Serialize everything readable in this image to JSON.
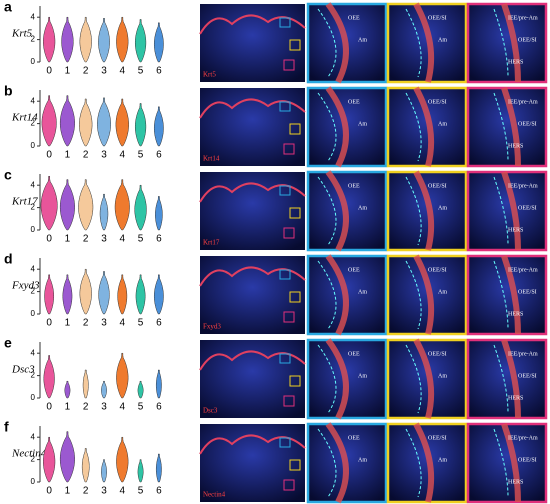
{
  "chart_data": [
    {
      "type": "violin",
      "panel": "a",
      "gene": "Krt5",
      "categories": [
        "0",
        "1",
        "2",
        "3",
        "4",
        "5",
        "6"
      ],
      "values": [
        4,
        4,
        4,
        3.9,
        4,
        3.8,
        3.5
      ],
      "ylim": [
        0,
        5
      ],
      "yticks": [
        0,
        2,
        4
      ]
    },
    {
      "type": "violin",
      "panel": "b",
      "gene": "Krt14",
      "categories": [
        "0",
        "1",
        "2",
        "3",
        "4",
        "5",
        "6"
      ],
      "values": [
        4.5,
        4.5,
        4.2,
        4.3,
        4.2,
        3.8,
        3.5
      ],
      "ylim": [
        0,
        5
      ],
      "yticks": [
        0,
        2,
        4
      ]
    },
    {
      "type": "violin",
      "panel": "c",
      "gene": "Krt17",
      "categories": [
        "0",
        "1",
        "2",
        "3",
        "4",
        "5",
        "6"
      ],
      "values": [
        4.8,
        4.5,
        4.5,
        3.2,
        4.5,
        4,
        3
      ],
      "ylim": [
        0,
        5
      ],
      "yticks": [
        0,
        2,
        4
      ]
    },
    {
      "type": "violin",
      "panel": "d",
      "gene": "Fxyd3",
      "categories": [
        "0",
        "1",
        "2",
        "3",
        "4",
        "5",
        "6"
      ],
      "values": [
        3.5,
        3.5,
        4,
        3.8,
        3.5,
        3.5,
        3.5
      ],
      "ylim": [
        0,
        5
      ],
      "yticks": [
        0,
        2,
        4
      ]
    },
    {
      "type": "violin",
      "panel": "e",
      "gene": "Dsc3",
      "categories": [
        "0",
        "1",
        "2",
        "3",
        "4",
        "5",
        "6"
      ],
      "values": [
        3.8,
        1.5,
        2.5,
        1.5,
        4,
        1.5,
        2.5
      ],
      "ylim": [
        0,
        5
      ],
      "yticks": [
        0,
        2,
        4
      ]
    },
    {
      "type": "violin",
      "panel": "f",
      "gene": "Nectin4",
      "categories": [
        "0",
        "1",
        "2",
        "3",
        "4",
        "5",
        "6"
      ],
      "values": [
        4,
        4.5,
        3,
        2,
        4,
        2,
        2.5
      ],
      "ylim": [
        0,
        5
      ],
      "yticks": [
        0,
        2,
        4
      ]
    }
  ],
  "colors": [
    "#e8559a",
    "#9b59d0",
    "#f5c99b",
    "#7fb3e0",
    "#ef7a2e",
    "#2ec4a5",
    "#4a8fd8"
  ],
  "zoom_labels": {
    "cyan": [
      "OEE",
      "Am"
    ],
    "yellow": [
      "OEE/SI",
      "Am"
    ],
    "magenta": [
      "IEE/pre-Am",
      "OEE/SI",
      "HERS"
    ]
  }
}
